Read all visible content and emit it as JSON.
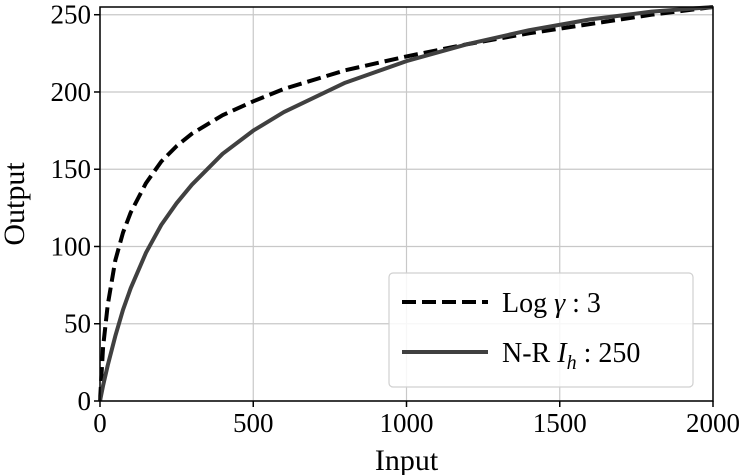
{
  "chart_data": {
    "type": "line",
    "xlabel": "Input",
    "ylabel": "Output",
    "xlim": [
      0,
      2000
    ],
    "ylim": [
      0,
      255
    ],
    "xticks": [
      0,
      500,
      1000,
      1500,
      2000
    ],
    "yticks": [
      0,
      50,
      100,
      150,
      200,
      250
    ],
    "grid": true,
    "legend_position": "lower-right",
    "series": [
      {
        "name": "Log γ : 3",
        "legend_prefix": "Log ",
        "legend_symbol": "γ",
        "legend_suffix": " : 3",
        "style": "dashed",
        "color": "#000000",
        "x": [
          0,
          10,
          25,
          50,
          75,
          100,
          150,
          200,
          250,
          300,
          400,
          500,
          600,
          800,
          1000,
          1200,
          1400,
          1600,
          1800,
          2000
        ],
        "y": [
          0,
          35,
          62,
          91,
          109,
          122,
          141,
          155,
          165,
          173,
          185,
          194,
          202,
          214,
          223,
          231,
          238,
          244,
          250,
          255
        ]
      },
      {
        "name": "N-R Ih : 250",
        "legend_prefix": "N-R ",
        "legend_symbol": "I",
        "legend_subscript": "h",
        "legend_suffix": " : 250",
        "style": "solid",
        "color": "#404040",
        "x": [
          0,
          10,
          25,
          50,
          75,
          100,
          150,
          200,
          250,
          300,
          400,
          500,
          600,
          800,
          1000,
          1200,
          1400,
          1600,
          1800,
          2000
        ],
        "y": [
          0,
          10,
          23,
          42,
          59,
          73,
          96,
          114,
          128,
          140,
          160,
          175,
          187,
          206,
          220,
          231,
          240,
          247,
          252,
          255
        ]
      }
    ]
  }
}
